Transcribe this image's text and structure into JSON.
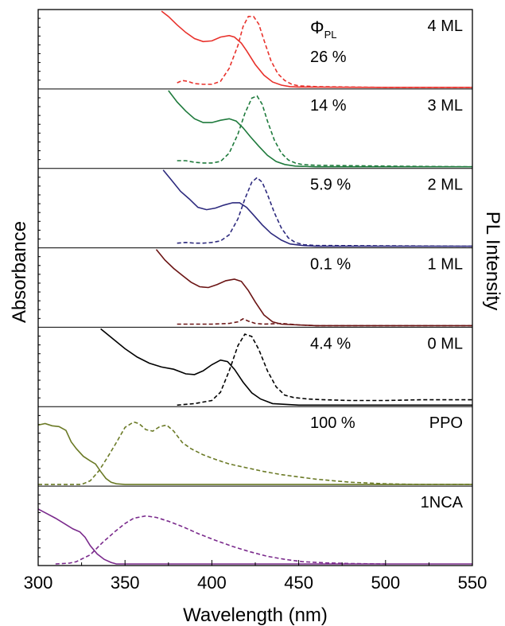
{
  "chart_data": {
    "type": "line",
    "xlabel": "Wavelength (nm)",
    "ylabel_left": "Absorbance",
    "ylabel_right": "PL Intensity",
    "xlim": [
      300,
      550
    ],
    "x_ticks": [
      300,
      350,
      400,
      450,
      500,
      550
    ],
    "qy_label": "Φ",
    "qy_subscript": "PL",
    "line_styles": {
      "absorbance": "solid",
      "pl": "dashed"
    },
    "panels": [
      {
        "name": "4 ML",
        "qy": "26 %",
        "color": "#e8322c",
        "absorbance": [
          [
            371,
            1.0
          ],
          [
            375,
            0.93
          ],
          [
            380,
            0.82
          ],
          [
            385,
            0.72
          ],
          [
            390,
            0.64
          ],
          [
            395,
            0.6
          ],
          [
            400,
            0.61
          ],
          [
            405,
            0.66
          ],
          [
            410,
            0.68
          ],
          [
            413,
            0.66
          ],
          [
            417,
            0.58
          ],
          [
            420,
            0.48
          ],
          [
            425,
            0.3
          ],
          [
            430,
            0.16
          ],
          [
            435,
            0.07
          ],
          [
            440,
            0.03
          ],
          [
            445,
            0.01
          ],
          [
            450,
            0.005
          ],
          [
            500,
            0.0
          ],
          [
            550,
            0.0
          ]
        ],
        "pl": [
          [
            380,
            0.06
          ],
          [
            383,
            0.09
          ],
          [
            386,
            0.08
          ],
          [
            390,
            0.05
          ],
          [
            395,
            0.04
          ],
          [
            400,
            0.04
          ],
          [
            405,
            0.08
          ],
          [
            410,
            0.25
          ],
          [
            415,
            0.55
          ],
          [
            418,
            0.8
          ],
          [
            421,
            0.93
          ],
          [
            424,
            0.93
          ],
          [
            427,
            0.83
          ],
          [
            430,
            0.62
          ],
          [
            434,
            0.35
          ],
          [
            438,
            0.18
          ],
          [
            442,
            0.09
          ],
          [
            446,
            0.04
          ],
          [
            450,
            0.02
          ],
          [
            460,
            0.01
          ],
          [
            500,
            0.0
          ],
          [
            550,
            0.0
          ]
        ]
      },
      {
        "name": "3 ML",
        "qy": "14 %",
        "color": "#1e7a3c",
        "absorbance": [
          [
            375,
            1.0
          ],
          [
            380,
            0.85
          ],
          [
            385,
            0.73
          ],
          [
            390,
            0.63
          ],
          [
            395,
            0.58
          ],
          [
            400,
            0.58
          ],
          [
            405,
            0.61
          ],
          [
            410,
            0.63
          ],
          [
            414,
            0.6
          ],
          [
            418,
            0.51
          ],
          [
            422,
            0.4
          ],
          [
            427,
            0.27
          ],
          [
            432,
            0.15
          ],
          [
            437,
            0.07
          ],
          [
            442,
            0.03
          ],
          [
            448,
            0.01
          ],
          [
            460,
            0.0
          ],
          [
            550,
            0.0
          ]
        ],
        "pl": [
          [
            380,
            0.08
          ],
          [
            385,
            0.08
          ],
          [
            390,
            0.06
          ],
          [
            395,
            0.05
          ],
          [
            400,
            0.05
          ],
          [
            405,
            0.07
          ],
          [
            410,
            0.18
          ],
          [
            415,
            0.43
          ],
          [
            419,
            0.7
          ],
          [
            423,
            0.9
          ],
          [
            426,
            0.93
          ],
          [
            429,
            0.82
          ],
          [
            432,
            0.6
          ],
          [
            436,
            0.35
          ],
          [
            440,
            0.18
          ],
          [
            444,
            0.09
          ],
          [
            448,
            0.05
          ],
          [
            452,
            0.03
          ],
          [
            460,
            0.02
          ],
          [
            500,
            0.01
          ],
          [
            550,
            0.0
          ]
        ]
      },
      {
        "name": "2 ML",
        "qy": "5.9 %",
        "color": "#2d2a7e",
        "absorbance": [
          [
            372,
            1.0
          ],
          [
            377,
            0.86
          ],
          [
            382,
            0.72
          ],
          [
            387,
            0.62
          ],
          [
            392,
            0.51
          ],
          [
            397,
            0.48
          ],
          [
            402,
            0.5
          ],
          [
            407,
            0.54
          ],
          [
            412,
            0.57
          ],
          [
            416,
            0.57
          ],
          [
            420,
            0.51
          ],
          [
            424,
            0.41
          ],
          [
            429,
            0.28
          ],
          [
            434,
            0.17
          ],
          [
            440,
            0.08
          ],
          [
            445,
            0.03
          ],
          [
            452,
            0.01
          ],
          [
            460,
            0.0
          ],
          [
            550,
            0.0
          ]
        ],
        "pl": [
          [
            380,
            0.04
          ],
          [
            385,
            0.05
          ],
          [
            390,
            0.04
          ],
          [
            395,
            0.04
          ],
          [
            400,
            0.05
          ],
          [
            405,
            0.07
          ],
          [
            410,
            0.15
          ],
          [
            415,
            0.36
          ],
          [
            419,
            0.62
          ],
          [
            423,
            0.84
          ],
          [
            426,
            0.9
          ],
          [
            429,
            0.84
          ],
          [
            432,
            0.68
          ],
          [
            436,
            0.44
          ],
          [
            440,
            0.24
          ],
          [
            444,
            0.11
          ],
          [
            448,
            0.05
          ],
          [
            453,
            0.02
          ],
          [
            460,
            0.01
          ],
          [
            550,
            0.0
          ]
        ]
      },
      {
        "name": "1 ML",
        "qy": "0.1 %",
        "color": "#6b1414",
        "absorbance": [
          [
            368,
            1.0
          ],
          [
            373,
            0.86
          ],
          [
            378,
            0.75
          ],
          [
            383,
            0.66
          ],
          [
            388,
            0.57
          ],
          [
            393,
            0.51
          ],
          [
            398,
            0.5
          ],
          [
            403,
            0.54
          ],
          [
            408,
            0.59
          ],
          [
            413,
            0.61
          ],
          [
            417,
            0.58
          ],
          [
            421,
            0.46
          ],
          [
            425,
            0.31
          ],
          [
            430,
            0.14
          ],
          [
            435,
            0.05
          ],
          [
            440,
            0.02
          ],
          [
            450,
            0.01
          ],
          [
            460,
            0.0
          ],
          [
            550,
            0.0
          ]
        ],
        "pl": [
          [
            380,
            0.02
          ],
          [
            390,
            0.02
          ],
          [
            400,
            0.02
          ],
          [
            410,
            0.03
          ],
          [
            415,
            0.05
          ],
          [
            418,
            0.09
          ],
          [
            421,
            0.06
          ],
          [
            425,
            0.03
          ],
          [
            430,
            0.02
          ],
          [
            440,
            0.03
          ],
          [
            450,
            0.01
          ],
          [
            460,
            0.0
          ],
          [
            550,
            0.0
          ]
        ]
      },
      {
        "name": "0 ML",
        "qy": "4.4 %",
        "color": "#000000",
        "absorbance": [
          [
            336,
            1.0
          ],
          [
            343,
            0.87
          ],
          [
            350,
            0.74
          ],
          [
            357,
            0.63
          ],
          [
            364,
            0.55
          ],
          [
            371,
            0.5
          ],
          [
            378,
            0.47
          ],
          [
            385,
            0.41
          ],
          [
            390,
            0.4
          ],
          [
            395,
            0.45
          ],
          [
            400,
            0.53
          ],
          [
            405,
            0.59
          ],
          [
            409,
            0.57
          ],
          [
            413,
            0.47
          ],
          [
            418,
            0.3
          ],
          [
            423,
            0.16
          ],
          [
            428,
            0.08
          ],
          [
            435,
            0.02
          ],
          [
            442,
            0.01
          ],
          [
            450,
            0.0
          ],
          [
            550,
            0.0
          ]
        ],
        "pl": [
          [
            380,
            0.0
          ],
          [
            390,
            0.02
          ],
          [
            400,
            0.06
          ],
          [
            405,
            0.17
          ],
          [
            410,
            0.45
          ],
          [
            415,
            0.78
          ],
          [
            419,
            0.93
          ],
          [
            423,
            0.9
          ],
          [
            427,
            0.73
          ],
          [
            432,
            0.45
          ],
          [
            437,
            0.24
          ],
          [
            442,
            0.13
          ],
          [
            447,
            0.1
          ],
          [
            455,
            0.08
          ],
          [
            465,
            0.07
          ],
          [
            480,
            0.06
          ],
          [
            500,
            0.06
          ],
          [
            520,
            0.07
          ],
          [
            550,
            0.07
          ]
        ]
      },
      {
        "name": "PPO",
        "qy": "100 %",
        "color": "#6b7a26",
        "absorbance": [
          [
            300,
            0.78
          ],
          [
            304,
            0.8
          ],
          [
            308,
            0.77
          ],
          [
            312,
            0.76
          ],
          [
            316,
            0.71
          ],
          [
            319,
            0.56
          ],
          [
            322,
            0.47
          ],
          [
            326,
            0.37
          ],
          [
            330,
            0.31
          ],
          [
            333,
            0.27
          ],
          [
            336,
            0.17
          ],
          [
            339,
            0.08
          ],
          [
            342,
            0.03
          ],
          [
            345,
            0.01
          ],
          [
            350,
            0.0
          ],
          [
            550,
            0.0
          ]
        ],
        "pl": [
          [
            300,
            0.0
          ],
          [
            315,
            0.0
          ],
          [
            325,
            0.0
          ],
          [
            330,
            0.05
          ],
          [
            335,
            0.18
          ],
          [
            340,
            0.36
          ],
          [
            345,
            0.55
          ],
          [
            350,
            0.75
          ],
          [
            355,
            0.82
          ],
          [
            358,
            0.8
          ],
          [
            362,
            0.72
          ],
          [
            366,
            0.7
          ],
          [
            370,
            0.76
          ],
          [
            374,
            0.78
          ],
          [
            378,
            0.7
          ],
          [
            383,
            0.55
          ],
          [
            388,
            0.47
          ],
          [
            395,
            0.39
          ],
          [
            402,
            0.33
          ],
          [
            410,
            0.27
          ],
          [
            420,
            0.22
          ],
          [
            430,
            0.17
          ],
          [
            440,
            0.13
          ],
          [
            450,
            0.1
          ],
          [
            460,
            0.07
          ],
          [
            470,
            0.05
          ],
          [
            480,
            0.03
          ],
          [
            490,
            0.02
          ],
          [
            500,
            0.01
          ],
          [
            520,
            0.0
          ],
          [
            550,
            0.0
          ]
        ]
      },
      {
        "name": "1NCA",
        "qy": "",
        "color": "#7a2a8c",
        "absorbance": [
          [
            300,
            0.72
          ],
          [
            305,
            0.66
          ],
          [
            310,
            0.6
          ],
          [
            315,
            0.53
          ],
          [
            320,
            0.46
          ],
          [
            324,
            0.42
          ],
          [
            327,
            0.35
          ],
          [
            330,
            0.24
          ],
          [
            334,
            0.13
          ],
          [
            338,
            0.06
          ],
          [
            342,
            0.02
          ],
          [
            345,
            0.0
          ],
          [
            550,
            0.0
          ]
        ],
        "pl": [
          [
            310,
            0.0
          ],
          [
            318,
            0.01
          ],
          [
            322,
            0.03
          ],
          [
            330,
            0.12
          ],
          [
            337,
            0.28
          ],
          [
            344,
            0.42
          ],
          [
            350,
            0.53
          ],
          [
            355,
            0.6
          ],
          [
            362,
            0.63
          ],
          [
            368,
            0.61
          ],
          [
            375,
            0.56
          ],
          [
            383,
            0.49
          ],
          [
            392,
            0.4
          ],
          [
            402,
            0.31
          ],
          [
            412,
            0.23
          ],
          [
            422,
            0.16
          ],
          [
            432,
            0.1
          ],
          [
            442,
            0.06
          ],
          [
            452,
            0.03
          ],
          [
            465,
            0.015
          ],
          [
            480,
            0.005
          ],
          [
            500,
            0.0
          ]
        ]
      }
    ]
  }
}
